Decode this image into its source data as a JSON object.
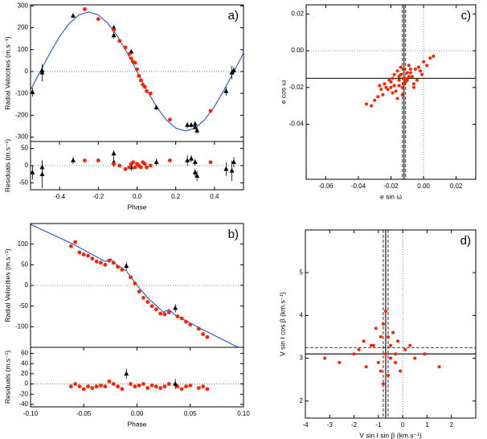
{
  "chart_data": [
    {
      "type": "scatter",
      "label": "a)",
      "ylabel": "Radial Velocities (m.s⁻¹)",
      "xlim": [
        -0.55,
        0.55
      ],
      "ylim": [
        -320,
        305
      ],
      "yticks": [
        -300,
        -200,
        -100,
        0,
        100,
        200,
        300
      ],
      "hlines": [
        {
          "value": 0,
          "style": "dotted"
        }
      ],
      "series": [
        {
          "marker": "line",
          "color": "#2255cc",
          "x": [
            -0.55,
            -0.5,
            -0.45,
            -0.4,
            -0.35,
            -0.3,
            -0.25,
            -0.2,
            -0.15,
            -0.1,
            -0.05,
            0,
            0.05,
            0.1,
            0.15,
            0.2,
            0.25,
            0.3,
            0.35,
            0.4,
            0.45,
            0.5,
            0.55
          ],
          "values": [
            -84,
            0,
            84,
            160,
            220,
            259,
            272,
            259,
            220,
            160,
            84,
            0,
            -84,
            -160,
            -220,
            -259,
            -272,
            -259,
            -220,
            -160,
            -84,
            0,
            84
          ]
        },
        {
          "marker": "triangle",
          "color": "#000000",
          "x": [
            -0.54,
            -0.49,
            -0.49,
            -0.33,
            -0.12,
            -0.12,
            -0.03,
            0.1,
            0.26,
            0.28,
            0.3,
            0.31,
            0.3,
            0.46,
            0.49,
            0.5
          ],
          "values": [
            -95,
            -5,
            5,
            255,
            200,
            165,
            90,
            -165,
            -245,
            -245,
            -255,
            -270,
            -240,
            -90,
            -5,
            5
          ],
          "errors": [
            20,
            40,
            20,
            10,
            10,
            15,
            10,
            10,
            15,
            10,
            10,
            15,
            10,
            20,
            30,
            15
          ]
        },
        {
          "marker": "circle",
          "color": "#ff2200",
          "x": [
            -0.27,
            -0.2,
            -0.12,
            -0.09,
            -0.06,
            -0.04,
            -0.03,
            -0.02,
            -0.01,
            0,
            0.01,
            0.02,
            0.03,
            0.04,
            0.05,
            0.07,
            0.17,
            0.38
          ],
          "values": [
            285,
            240,
            190,
            140,
            110,
            80,
            60,
            45,
            40,
            10,
            -20,
            -40,
            -60,
            -70,
            -90,
            -100,
            -220,
            -180
          ]
        }
      ]
    },
    {
      "type": "scatter",
      "ylabel": "Residuals (m.s⁻¹)",
      "xlabel": "Phase",
      "xlim": [
        -0.55,
        0.55
      ],
      "ylim": [
        -70,
        70
      ],
      "xticks": [
        -0.4,
        -0.2,
        {
          "value": 0,
          "label": "0.0"
        },
        0.2,
        0.4
      ],
      "yticks": [
        -50,
        0,
        50
      ],
      "hlines": [
        {
          "value": 0,
          "style": "dotted"
        }
      ],
      "series": [
        {
          "marker": "triangle",
          "color": "#000000",
          "x": [
            -0.54,
            -0.49,
            -0.49,
            -0.33,
            -0.12,
            -0.12,
            -0.03,
            0.1,
            0.26,
            0.28,
            0.3,
            0.31,
            0.3,
            0.46,
            0.49,
            0.5
          ],
          "values": [
            -20,
            -25,
            -5,
            15,
            35,
            10,
            -5,
            10,
            15,
            20,
            10,
            -30,
            -20,
            -10,
            -15,
            10
          ],
          "errors": [
            20,
            40,
            20,
            10,
            10,
            15,
            10,
            10,
            15,
            10,
            10,
            15,
            10,
            20,
            30,
            15
          ]
        },
        {
          "marker": "circle",
          "color": "#ff2200",
          "x": [
            -0.27,
            -0.2,
            -0.12,
            -0.09,
            -0.06,
            -0.04,
            -0.03,
            -0.02,
            -0.01,
            0,
            0.01,
            0.02,
            0.03,
            0.04,
            0.05,
            0.07,
            0.17,
            0.38
          ],
          "values": [
            15,
            15,
            5,
            0,
            -10,
            -5,
            5,
            10,
            -5,
            5,
            0,
            -5,
            10,
            5,
            -5,
            0,
            15,
            10
          ]
        }
      ]
    },
    {
      "type": "scatter",
      "label": "b)",
      "ylabel": "Radial Velocities (m.s⁻¹)",
      "xlim": [
        -0.1,
        0.1
      ],
      "ylim": [
        -150,
        150
      ],
      "yticks": [
        -100,
        -50,
        0,
        50,
        100
      ],
      "hlines": [
        {
          "value": 0,
          "style": "dotted"
        }
      ],
      "series": [
        {
          "marker": "line",
          "color": "#2255cc",
          "x": [
            -0.1,
            -0.06,
            -0.03,
            -0.025,
            -0.02,
            -0.01,
            0,
            0.01,
            0.025,
            0.03,
            0.035,
            0.06,
            0.095
          ],
          "values": [
            148,
            100,
            58,
            65,
            52,
            35,
            0,
            -30,
            -65,
            -58,
            -70,
            -105,
            -150
          ]
        },
        {
          "marker": "circle",
          "color": "#ff2200",
          "x": [
            -0.062,
            -0.058,
            -0.054,
            -0.05,
            -0.046,
            -0.042,
            -0.038,
            -0.034,
            -0.03,
            -0.026,
            -0.022,
            -0.018,
            -0.014,
            -0.006,
            -0.002,
            0.002,
            0.006,
            0.01,
            0.014,
            0.018,
            0.022,
            0.026,
            0.03,
            0.038,
            0.042,
            0.046,
            0.05,
            0.058,
            0.062,
            0.066
          ],
          "values": [
            95,
            105,
            80,
            75,
            72,
            65,
            58,
            55,
            50,
            60,
            55,
            45,
            38,
            20,
            5,
            -15,
            -30,
            -40,
            -50,
            -58,
            -68,
            -70,
            -65,
            -75,
            -80,
            -88,
            -95,
            -105,
            -118,
            -125
          ]
        },
        {
          "marker": "triangle",
          "color": "#000000",
          "x": [
            -0.01,
            0.036
          ],
          "values": [
            47,
            -55
          ],
          "errors": [
            10,
            10
          ]
        }
      ]
    },
    {
      "type": "scatter",
      "ylabel": "Residuals (m.s⁻¹)",
      "xlabel": "Phase",
      "xlim": [
        -0.1,
        0.1
      ],
      "ylim": [
        -45,
        72
      ],
      "xticks": [
        {
          "value": -0.1,
          "label": "-0.10"
        },
        -0.05,
        {
          "value": 0,
          "label": "0.00"
        },
        0.05,
        {
          "value": 0.1,
          "label": "0.10"
        }
      ],
      "yticks": [
        -40,
        -20,
        0,
        20,
        40,
        60
      ],
      "hlines": [
        {
          "value": 0,
          "style": "dotted"
        }
      ],
      "series": [
        {
          "marker": "circle",
          "color": "#ff2200",
          "x": [
            -0.062,
            -0.058,
            -0.054,
            -0.05,
            -0.046,
            -0.042,
            -0.038,
            -0.034,
            -0.03,
            -0.026,
            -0.022,
            -0.018,
            -0.014,
            -0.006,
            -0.002,
            0.002,
            0.006,
            0.01,
            0.014,
            0.018,
            0.022,
            0.026,
            0.03,
            0.038,
            0.042,
            0.046,
            0.05,
            0.058,
            0.062,
            0.066
          ],
          "values": [
            -5,
            0,
            -5,
            -10,
            -5,
            -8,
            -5,
            -3,
            -5,
            5,
            0,
            -5,
            -10,
            0,
            -5,
            -3,
            0,
            -8,
            -3,
            -5,
            -8,
            -5,
            0,
            -5,
            -10,
            -5,
            -3,
            -8,
            -5,
            -10
          ]
        },
        {
          "marker": "triangle",
          "color": "#000000",
          "x": [
            -0.01,
            0.036
          ],
          "values": [
            20,
            0
          ],
          "errors": [
            10,
            10
          ]
        }
      ]
    },
    {
      "type": "scatter",
      "label": "c)",
      "xlabel": "e sin ω",
      "ylabel": "e cos ω",
      "xlim": [
        -0.072,
        0.032
      ],
      "ylim": [
        -0.07,
        0.025
      ],
      "xticks": [
        -0.06,
        -0.04,
        -0.02,
        {
          "value": 0,
          "label": "0.00"
        },
        0.02
      ],
      "yticks": [
        -0.04,
        -0.02,
        {
          "value": 0,
          "label": "0.00"
        },
        0.02
      ],
      "vlines": [
        {
          "value": -0.013,
          "style": "dashed"
        },
        {
          "value": -0.011,
          "style": "dashed"
        },
        {
          "value": -0.012,
          "style": "solid"
        },
        {
          "value": 0,
          "style": "dotted"
        }
      ],
      "hlines": [
        {
          "value": -0.015,
          "style": "solid"
        },
        {
          "value": 0,
          "style": "dotted"
        }
      ],
      "series": [
        {
          "marker": "dot",
          "color": "#ff2200",
          "x": [
            -0.012,
            -0.02,
            -0.005,
            -0.015,
            -0.008,
            -0.025,
            0.0,
            -0.018,
            -0.01,
            -0.03,
            -0.003,
            -0.014,
            -0.022,
            -0.006,
            -0.016,
            -0.011,
            -0.028,
            0.004,
            -0.019,
            -0.009,
            -0.013,
            -0.024,
            -0.001,
            -0.017,
            -0.007,
            -0.021,
            -0.012,
            -0.032,
            0.002,
            -0.015,
            -0.01,
            -0.026,
            -0.004,
            -0.018,
            -0.013,
            -0.008,
            -0.023,
            -0.011,
            -0.02,
            -0.014,
            -0.006,
            -0.016,
            -0.035,
            0.006,
            -0.009,
            -0.012,
            -0.027,
            -0.002,
            -0.019,
            -0.015
          ],
          "values": [
            -0.015,
            -0.02,
            -0.01,
            -0.014,
            -0.012,
            -0.024,
            -0.006,
            -0.019,
            -0.016,
            -0.027,
            -0.009,
            -0.013,
            -0.021,
            -0.018,
            -0.011,
            -0.017,
            -0.025,
            -0.004,
            -0.015,
            -0.008,
            -0.02,
            -0.018,
            -0.013,
            -0.022,
            -0.014,
            -0.016,
            -0.01,
            -0.03,
            -0.008,
            -0.019,
            -0.012,
            -0.021,
            -0.016,
            -0.013,
            -0.024,
            -0.01,
            -0.02,
            -0.015,
            -0.017,
            -0.009,
            -0.02,
            -0.026,
            -0.029,
            -0.003,
            -0.014,
            -0.018,
            -0.019,
            -0.011,
            -0.023,
            -0.016
          ]
        }
      ]
    },
    {
      "type": "scatter",
      "label": "d)",
      "xlabel": "V sin I  sin β  (km.s⁻¹)",
      "ylabel": "V sin I  cos β  (km.s⁻¹)",
      "xlim": [
        -4,
        3
      ],
      "ylim": [
        1.6,
        6
      ],
      "xticks": [
        -4,
        -3,
        -2,
        -1,
        0,
        1,
        2
      ],
      "yticks": [
        2,
        3,
        4,
        5
      ],
      "vlines": [
        {
          "value": -0.8,
          "style": "dashed"
        },
        {
          "value": -0.6,
          "style": "dashed"
        },
        {
          "value": -0.7,
          "style": "solid"
        },
        {
          "value": 0,
          "style": "dotted"
        }
      ],
      "hlines": [
        {
          "value": 3.25,
          "style": "dashed"
        },
        {
          "value": 3.1,
          "style": "solid"
        }
      ],
      "series": [
        {
          "marker": "dot",
          "color": "#ff2200",
          "x": [
            -0.7,
            -1.2,
            -0.3,
            -0.9,
            -0.5,
            -1.5,
            0.1,
            -0.8,
            -0.6,
            -2.0,
            -0.2,
            -1.0,
            -0.4,
            -1.8,
            0.5,
            -0.7,
            -1.3,
            -0.1,
            -2.6,
            0.9,
            -0.8,
            -0.5,
            -1.1,
            -0.3,
            -3.2,
            1.5,
            -0.6,
            -0.9,
            -1.6,
            0.3
          ],
          "values": [
            3.1,
            3.3,
            2.9,
            3.5,
            3.0,
            2.8,
            3.2,
            3.8,
            2.6,
            3.1,
            3.4,
            2.9,
            3.6,
            3.2,
            3.0,
            4.1,
            3.3,
            2.7,
            2.9,
            3.1,
            2.4,
            3.3,
            3.7,
            3.1,
            3.0,
            2.8,
            3.5,
            2.7,
            3.4,
            3.3
          ]
        }
      ]
    }
  ]
}
